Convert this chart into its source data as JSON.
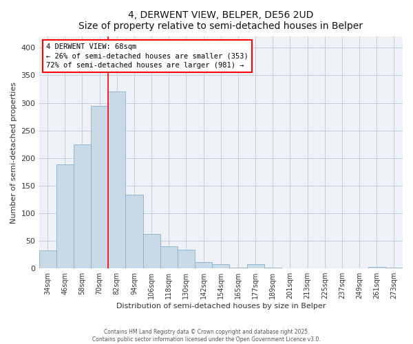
{
  "title": "4, DERWENT VIEW, BELPER, DE56 2UD",
  "subtitle": "Size of property relative to semi-detached houses in Belper",
  "xlabel": "Distribution of semi-detached houses by size in Belper",
  "ylabel": "Number of semi-detached properties",
  "footnote1": "Contains HM Land Registry data © Crown copyright and database right 2025.",
  "footnote2": "Contains public sector information licensed under the Open Government Licence v3.0.",
  "bar_labels": [
    "34sqm",
    "46sqm",
    "58sqm",
    "70sqm",
    "82sqm",
    "94sqm",
    "106sqm",
    "118sqm",
    "130sqm",
    "142sqm",
    "154sqm",
    "165sqm",
    "177sqm",
    "189sqm",
    "201sqm",
    "213sqm",
    "225sqm",
    "237sqm",
    "249sqm",
    "261sqm",
    "273sqm"
  ],
  "bar_values": [
    32,
    188,
    224,
    295,
    320,
    134,
    62,
    40,
    34,
    11,
    8,
    1,
    7,
    1,
    0,
    0,
    0,
    0,
    0,
    3,
    1
  ],
  "bar_color": "#c8d9e8",
  "bar_edge_color": "#8aafc8",
  "vline_x": 3.5,
  "vline_color": "red",
  "annotation_title": "4 DERWENT VIEW: 68sqm",
  "annotation_line1": "← 26% of semi-detached houses are smaller (353)",
  "annotation_line2": "72% of semi-detached houses are larger (981) →",
  "annotation_box_color": "white",
  "annotation_box_edge": "red",
  "ylim": [
    0,
    420
  ],
  "yticks": [
    0,
    50,
    100,
    150,
    200,
    250,
    300,
    350,
    400
  ],
  "background_color": "#ffffff",
  "plot_bg_color": "#eef2f7",
  "grid_color": "#c8d0dc"
}
